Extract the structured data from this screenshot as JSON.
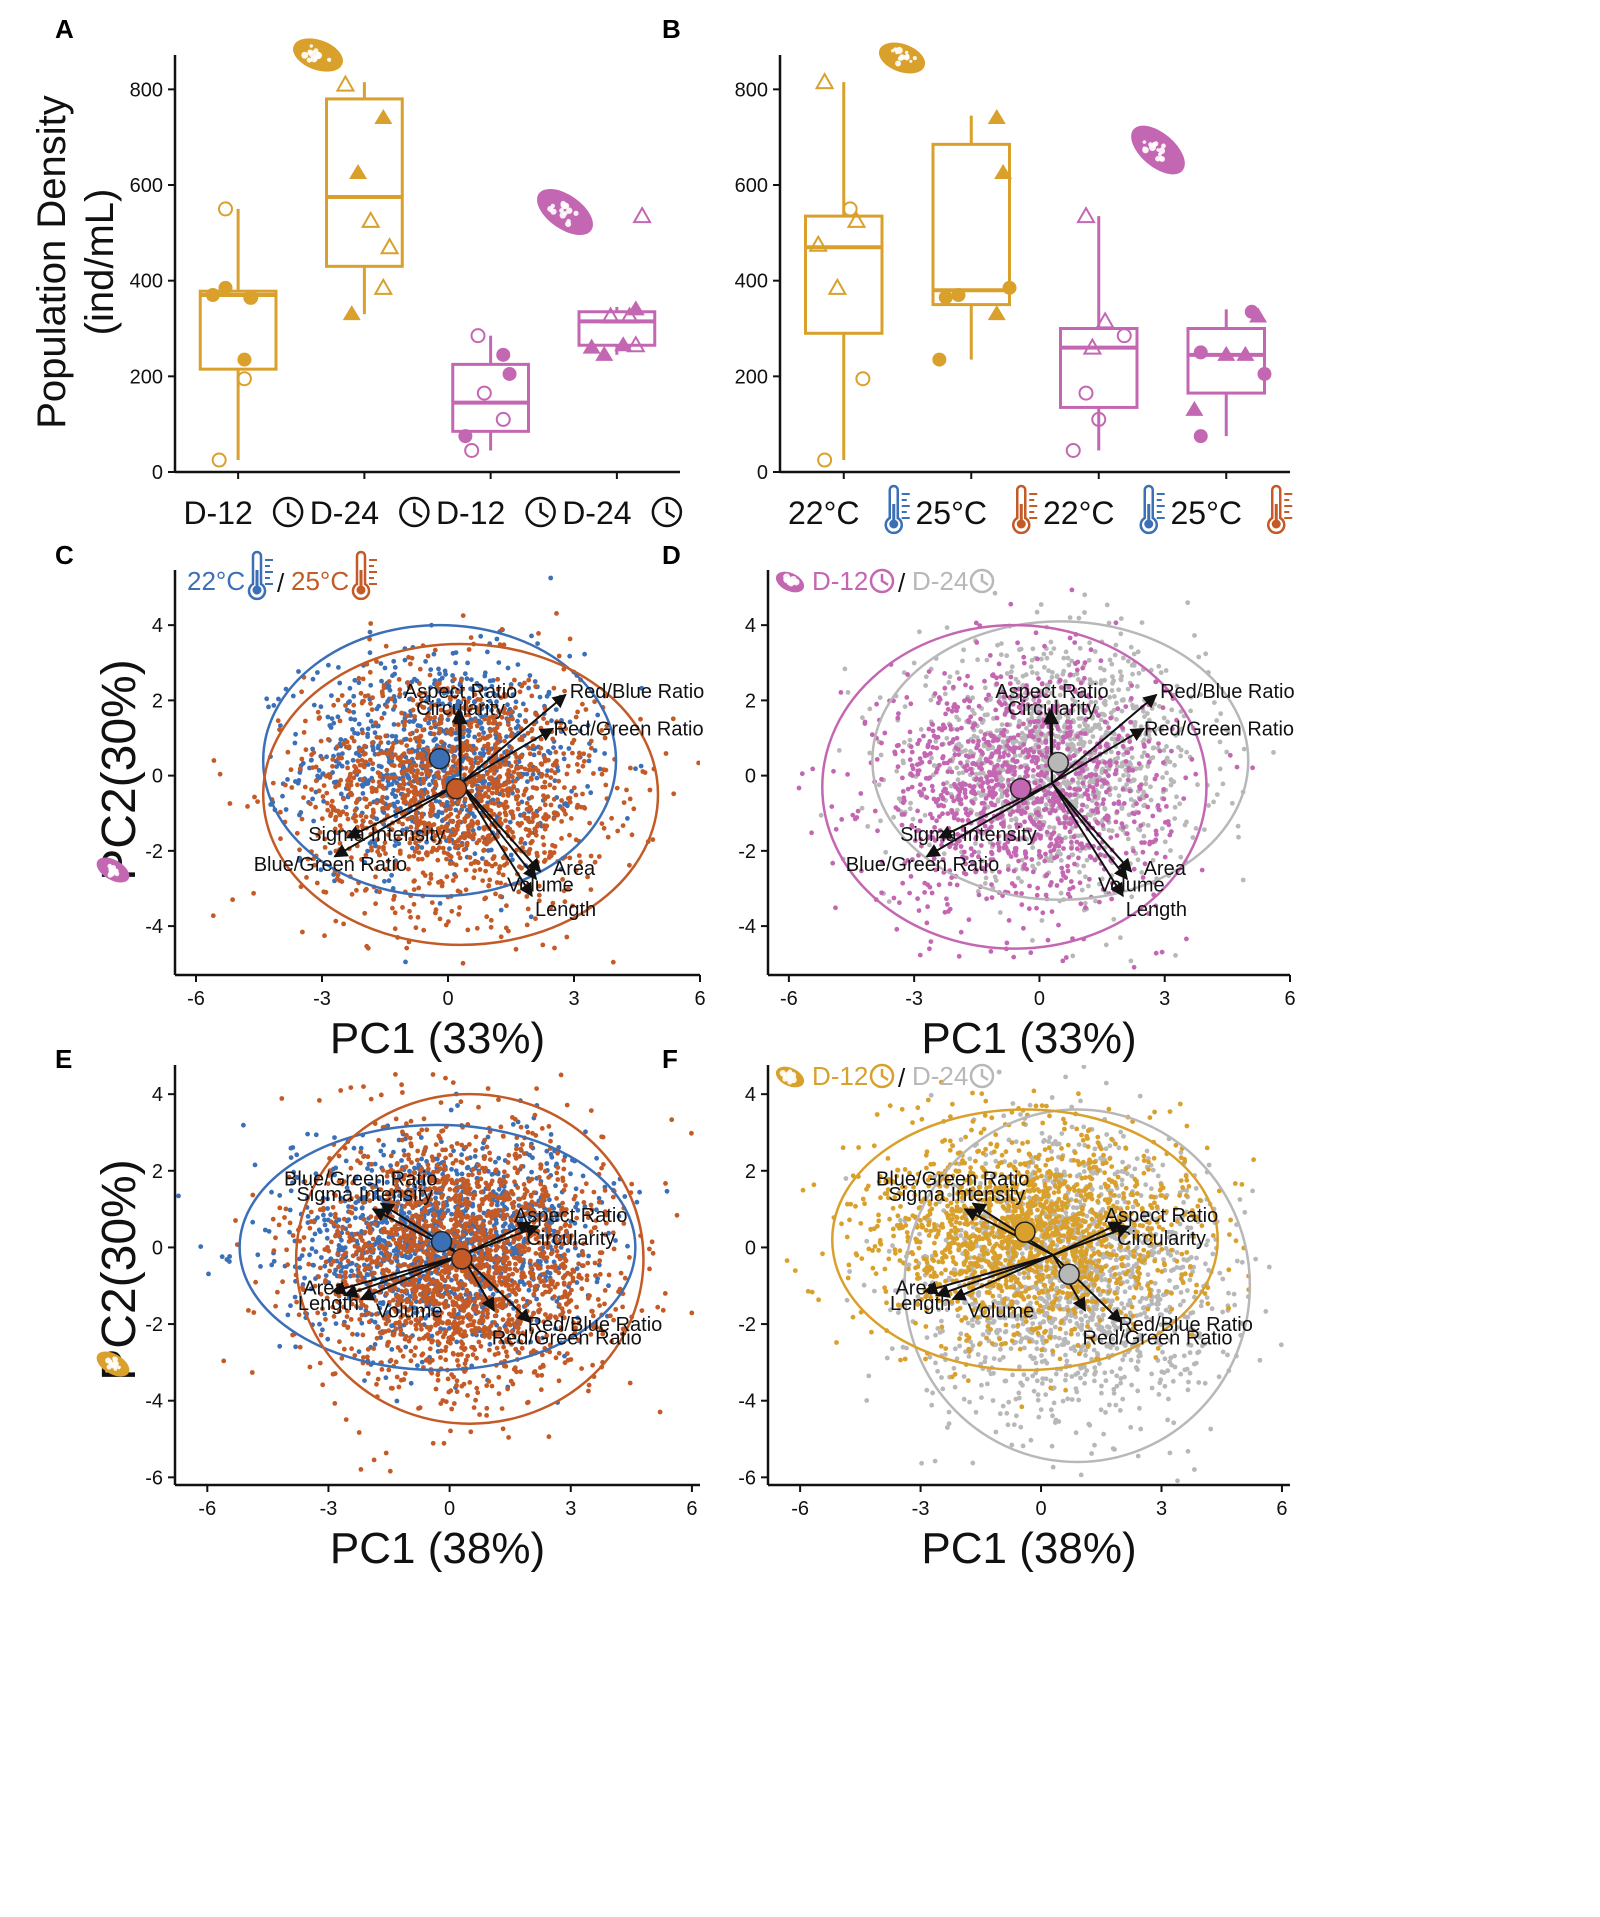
{
  "colors": {
    "orange": "#d9a02c",
    "magenta": "#c467b3",
    "blue": "#3b6fb6",
    "rust": "#c45a26",
    "gray": "#b8b8b8"
  },
  "panel_labels": [
    "A",
    "B",
    "C",
    "D",
    "E",
    "F"
  ],
  "y_axis_title_line1": "Population Density",
  "y_axis_title_line2": "(ind/mL)",
  "pca_y_title": "PC2(30%)",
  "legends": {
    "temp_22": "22°C",
    "temp_25": "25°C",
    "day_12": "D-12",
    "day_24": "D-24",
    "sep": "/"
  },
  "chart_data": [
    {
      "panel": "A",
      "type": "box",
      "ylim": [
        0,
        830
      ],
      "yticks": [
        "0",
        "200",
        "400",
        "600",
        "800"
      ],
      "categories": [
        "D-12",
        "D-24",
        "D-12",
        "D-24"
      ],
      "category_icon": "clock-icon",
      "groups": [
        {
          "label": "D-12",
          "color": "orange",
          "q1": 215,
          "median": 370,
          "q3": 378,
          "min": 25,
          "max": 550,
          "points": [
            [
              0,
              -0.1,
              550
            ],
            [
              0,
              0.1,
              365
            ],
            [
              0,
              0.05,
              195
            ],
            [
              0,
              -0.15,
              25
            ],
            [
              1,
              -0.2,
              370
            ],
            [
              1,
              -0.1,
              385
            ],
            [
              1,
              0.1,
              365
            ],
            [
              1,
              0.05,
              235
            ]
          ]
        },
        {
          "label": "D-24",
          "color": "orange",
          "q1": 430,
          "median": 575,
          "q3": 780,
          "min": 330,
          "max": 815,
          "points": [
            [
              2,
              -0.15,
              810
            ],
            [
              2,
              0.05,
              525
            ],
            [
              2,
              0.2,
              470
            ],
            [
              2,
              0.15,
              385
            ],
            [
              3,
              0.15,
              740
            ],
            [
              3,
              -0.05,
              625
            ],
            [
              3,
              -0.1,
              330
            ]
          ]
        },
        {
          "label": "D-12",
          "color": "magenta",
          "q1": 85,
          "median": 145,
          "q3": 225,
          "min": 45,
          "max": 285,
          "points": [
            [
              0,
              -0.1,
              285
            ],
            [
              0,
              -0.05,
              165
            ],
            [
              0,
              0.1,
              110
            ],
            [
              0,
              -0.15,
              45
            ],
            [
              1,
              0.1,
              245
            ],
            [
              1,
              0.15,
              205
            ],
            [
              1,
              -0.2,
              75
            ]
          ]
        },
        {
          "label": "D-24",
          "color": "magenta",
          "q1": 265,
          "median": 315,
          "q3": 335,
          "min": 245,
          "max": 345,
          "points": [
            [
              2,
              0.2,
              535
            ],
            [
              2,
              -0.05,
              325
            ],
            [
              2,
              0.1,
              325
            ],
            [
              2,
              0.15,
              265
            ],
            [
              3,
              0.15,
              340
            ],
            [
              3,
              -0.2,
              260
            ],
            [
              3,
              0.05,
              265
            ],
            [
              3,
              -0.1,
              245
            ]
          ]
        }
      ]
    },
    {
      "panel": "B",
      "type": "box",
      "ylim": [
        0,
        830
      ],
      "yticks": [
        "0",
        "200",
        "400",
        "600",
        "800"
      ],
      "categories": [
        "22°C",
        "25°C",
        "22°C",
        "25°C"
      ],
      "category_colors": [
        "blue",
        "rust",
        "blue",
        "rust"
      ],
      "category_icon": "thermometer-icon",
      "groups": [
        {
          "label": "22°C",
          "color": "orange",
          "q1": 290,
          "median": 470,
          "q3": 535,
          "min": 25,
          "max": 815,
          "points": [
            [
              2,
              -0.15,
              815
            ],
            [
              0,
              0.05,
              550
            ],
            [
              2,
              0.1,
              525
            ],
            [
              2,
              -0.2,
              475
            ],
            [
              2,
              -0.05,
              385
            ],
            [
              0,
              0.15,
              195
            ],
            [
              0,
              -0.15,
              25
            ]
          ]
        },
        {
          "label": "25°C",
          "color": "orange",
          "q1": 350,
          "median": 380,
          "q3": 685,
          "min": 235,
          "max": 745,
          "points": [
            [
              3,
              0.2,
              740
            ],
            [
              3,
              0.25,
              625
            ],
            [
              1,
              -0.2,
              365
            ],
            [
              1,
              -0.1,
              370
            ],
            [
              1,
              0.3,
              385
            ],
            [
              3,
              0.2,
              330
            ],
            [
              1,
              -0.25,
              235
            ]
          ]
        },
        {
          "label": "22°C",
          "color": "magenta",
          "q1": 135,
          "median": 260,
          "q3": 300,
          "min": 45,
          "max": 535,
          "points": [
            [
              2,
              -0.1,
              535
            ],
            [
              2,
              0.05,
              315
            ],
            [
              0,
              0.2,
              285
            ],
            [
              2,
              -0.05,
              260
            ],
            [
              0,
              -0.1,
              165
            ],
            [
              0,
              0.0,
              110
            ],
            [
              0,
              -0.2,
              45
            ]
          ]
        },
        {
          "label": "25°C",
          "color": "magenta",
          "q1": 165,
          "median": 245,
          "q3": 300,
          "min": 75,
          "max": 340,
          "points": [
            [
              1,
              0.2,
              335
            ],
            [
              3,
              0.25,
              325
            ],
            [
              3,
              0.0,
              245
            ],
            [
              3,
              0.15,
              245
            ],
            [
              1,
              -0.2,
              250
            ],
            [
              1,
              0.3,
              205
            ],
            [
              3,
              -0.25,
              130
            ],
            [
              1,
              -0.2,
              75
            ]
          ]
        }
      ]
    },
    {
      "panel": "C",
      "type": "scatter",
      "xlim": [
        -6.5,
        6
      ],
      "ylim": [
        -5.3,
        5.2
      ],
      "xticks": [
        -6,
        -3,
        0,
        3,
        6
      ],
      "yticks": [
        -4,
        -2,
        0,
        2,
        4
      ],
      "xlabel": "PC1 (33%)",
      "legend_pair": [
        "temp_22",
        "temp_25"
      ],
      "legend_colors": [
        "blue",
        "rust"
      ],
      "organism_color": "magenta",
      "groups": [
        {
          "color": "blue",
          "center": [
            -0.2,
            0.45
          ],
          "sd": [
            1.6,
            1.4
          ],
          "n": 900,
          "ellipse": {
            "cx": -0.2,
            "cy": 0.4,
            "rx": 4.2,
            "ry": 3.6
          }
        },
        {
          "color": "rust",
          "center": [
            0.2,
            -0.35
          ],
          "sd": [
            1.8,
            1.6
          ],
          "n": 1400,
          "ellipse": {
            "cx": 0.3,
            "cy": -0.5,
            "rx": 4.7,
            "ry": 4.0
          }
        }
      ],
      "vectors": [
        {
          "label": "Aspect Ratio",
          "end": [
            0.25,
            1.75
          ],
          "lx": 0.3,
          "ly": 2.25
        },
        {
          "label": "Circularity",
          "end": [
            0.3,
            1.7
          ],
          "lx": 0.3,
          "ly": 1.8
        },
        {
          "label": "Red/Blue Ratio",
          "end": [
            2.8,
            2.15
          ],
          "lx": 4.5,
          "ly": 2.25
        },
        {
          "label": "Red/Green Ratio",
          "end": [
            2.5,
            1.25
          ],
          "lx": 4.3,
          "ly": 1.25
        },
        {
          "label": "Sigma Intensity",
          "end": [
            -2.4,
            -1.65
          ],
          "lx": -1.7,
          "ly": -1.55
        },
        {
          "label": "Blue/Green Ratio",
          "end": [
            -2.7,
            -2.15
          ],
          "lx": -2.8,
          "ly": -2.35
        },
        {
          "label": "Area",
          "end": [
            2.2,
            -2.55
          ],
          "lx": 3.0,
          "ly": -2.45
        },
        {
          "label": "Volume",
          "end": [
            2.1,
            -2.75
          ],
          "lx": 2.2,
          "ly": -2.9
        },
        {
          "label": "Length",
          "end": [
            2.0,
            -3.2
          ],
          "lx": 2.8,
          "ly": -3.55
        }
      ]
    },
    {
      "panel": "D",
      "type": "scatter",
      "xlim": [
        -6.5,
        6
      ],
      "ylim": [
        -5.3,
        5.2
      ],
      "xticks": [
        -6,
        -3,
        0,
        3,
        6
      ],
      "yticks": [
        -4,
        -2,
        0,
        2,
        4
      ],
      "xlabel": "PC1 (33%)",
      "legend_pair": [
        "day_12",
        "day_24"
      ],
      "legend_colors": [
        "magenta",
        "gray"
      ],
      "organism_color": "magenta",
      "legend_icon_left": true,
      "groups": [
        {
          "color": "gray",
          "center": [
            0.45,
            0.35
          ],
          "sd": [
            1.7,
            1.5
          ],
          "n": 1200,
          "ellipse": {
            "cx": 0.5,
            "cy": 0.4,
            "rx": 4.5,
            "ry": 3.7
          }
        },
        {
          "color": "magenta",
          "center": [
            -0.45,
            -0.35
          ],
          "sd": [
            1.7,
            1.6
          ],
          "n": 1200,
          "ellipse": {
            "cx": -0.6,
            "cy": -0.3,
            "rx": 4.6,
            "ry": 4.3
          }
        }
      ],
      "vectors": [
        {
          "label": "Aspect Ratio",
          "end": [
            0.25,
            1.75
          ],
          "lx": 0.3,
          "ly": 2.25
        },
        {
          "label": "Circularity",
          "end": [
            0.3,
            1.7
          ],
          "lx": 0.3,
          "ly": 1.8
        },
        {
          "label": "Red/Blue Ratio",
          "end": [
            2.8,
            2.15
          ],
          "lx": 4.5,
          "ly": 2.25
        },
        {
          "label": "Red/Green Ratio",
          "end": [
            2.5,
            1.25
          ],
          "lx": 4.3,
          "ly": 1.25
        },
        {
          "label": "Sigma Intensity",
          "end": [
            -2.4,
            -1.65
          ],
          "lx": -1.7,
          "ly": -1.55
        },
        {
          "label": "Blue/Green Ratio",
          "end": [
            -2.7,
            -2.15
          ],
          "lx": -2.8,
          "ly": -2.35
        },
        {
          "label": "Area",
          "end": [
            2.2,
            -2.55
          ],
          "lx": 3.0,
          "ly": -2.45
        },
        {
          "label": "Volume",
          "end": [
            2.1,
            -2.75
          ],
          "lx": 2.2,
          "ly": -2.9
        },
        {
          "label": "Length",
          "end": [
            2.0,
            -3.2
          ],
          "lx": 2.8,
          "ly": -3.55
        }
      ]
    },
    {
      "panel": "E",
      "type": "scatter",
      "xlim": [
        -6.8,
        6.2
      ],
      "ylim": [
        -6.2,
        4.5
      ],
      "xticks": [
        -6,
        -3,
        0,
        3,
        6
      ],
      "yticks": [
        -6,
        -4,
        -2,
        0,
        2,
        4
      ],
      "xlabel": "PC1 (38%)",
      "legend_pair": null,
      "organism_color": "orange",
      "groups": [
        {
          "color": "blue",
          "center": [
            -0.2,
            0.15
          ],
          "sd": [
            1.9,
            1.3
          ],
          "n": 1300,
          "ellipse": {
            "cx": -0.3,
            "cy": 0.0,
            "rx": 4.9,
            "ry": 3.2
          }
        },
        {
          "color": "rust",
          "center": [
            0.3,
            -0.3
          ],
          "sd": [
            1.8,
            1.7
          ],
          "n": 2000,
          "ellipse": {
            "cx": 0.5,
            "cy": -0.3,
            "rx": 4.3,
            "ry": 4.3
          }
        }
      ],
      "vectors": [
        {
          "label": "Blue/Green Ratio",
          "end": [
            -1.7,
            1.15
          ],
          "lx": -2.2,
          "ly": 1.8
        },
        {
          "label": "Sigma Intensity",
          "end": [
            -1.9,
            1.0
          ],
          "lx": -2.1,
          "ly": 1.4
        },
        {
          "label": "Aspect Ratio",
          "end": [
            2.0,
            0.65
          ],
          "lx": 3.0,
          "ly": 0.85
        },
        {
          "label": "Circularity",
          "end": [
            2.2,
            0.55
          ],
          "lx": 3.0,
          "ly": 0.25
        },
        {
          "label": "Area",
          "end": [
            -2.9,
            -1.15
          ],
          "lx": -3.1,
          "ly": -1.05
        },
        {
          "label": "Length",
          "end": [
            -2.6,
            -1.25
          ],
          "lx": -3.0,
          "ly": -1.45
        },
        {
          "label": "Volume",
          "end": [
            -2.2,
            -1.35
          ],
          "lx": -1.0,
          "ly": -1.65
        },
        {
          "label": "Red/Blue Ratio",
          "end": [
            1.1,
            -1.65
          ],
          "lx": 3.6,
          "ly": -2.0
        },
        {
          "label": "Red/Green Ratio",
          "end": [
            2.0,
            -1.95
          ],
          "lx": 2.9,
          "ly": -2.35
        }
      ]
    },
    {
      "panel": "F",
      "type": "scatter",
      "xlim": [
        -6.8,
        6.2
      ],
      "ylim": [
        -6.2,
        4.5
      ],
      "xticks": [
        -6,
        -3,
        0,
        3,
        6
      ],
      "yticks": [
        -6,
        -4,
        -2,
        0,
        2,
        4
      ],
      "xlabel": "PC1 (38%)",
      "legend_pair": [
        "day_12",
        "day_24"
      ],
      "legend_colors": [
        "orange",
        "gray"
      ],
      "organism_color": "orange",
      "legend_icon_left": true,
      "groups": [
        {
          "color": "gray",
          "center": [
            0.7,
            -0.7
          ],
          "sd": [
            1.8,
            1.8
          ],
          "n": 1600,
          "ellipse": {
            "cx": 0.9,
            "cy": -1.0,
            "rx": 4.3,
            "ry": 4.6
          }
        },
        {
          "color": "orange",
          "center": [
            -0.4,
            0.4
          ],
          "sd": [
            1.9,
            1.3
          ],
          "n": 1700,
          "ellipse": {
            "cx": -0.4,
            "cy": 0.2,
            "rx": 4.8,
            "ry": 3.4
          }
        }
      ],
      "vectors": [
        {
          "label": "Blue/Green Ratio",
          "end": [
            -1.7,
            1.15
          ],
          "lx": -2.2,
          "ly": 1.8
        },
        {
          "label": "Sigma Intensity",
          "end": [
            -1.9,
            1.0
          ],
          "lx": -2.1,
          "ly": 1.4
        },
        {
          "label": "Aspect Ratio",
          "end": [
            2.0,
            0.65
          ],
          "lx": 3.0,
          "ly": 0.85
        },
        {
          "label": "Circularity",
          "end": [
            2.2,
            0.55
          ],
          "lx": 3.0,
          "ly": 0.25
        },
        {
          "label": "Area",
          "end": [
            -2.9,
            -1.15
          ],
          "lx": -3.1,
          "ly": -1.05
        },
        {
          "label": "Length",
          "end": [
            -2.6,
            -1.25
          ],
          "lx": -3.0,
          "ly": -1.45
        },
        {
          "label": "Volume",
          "end": [
            -2.2,
            -1.35
          ],
          "lx": -1.0,
          "ly": -1.65
        },
        {
          "label": "Red/Blue Ratio",
          "end": [
            1.1,
            -1.65
          ],
          "lx": 3.6,
          "ly": -2.0
        },
        {
          "label": "Red/Green Ratio",
          "end": [
            2.0,
            -1.95
          ],
          "lx": 2.9,
          "ly": -2.35
        }
      ]
    }
  ]
}
